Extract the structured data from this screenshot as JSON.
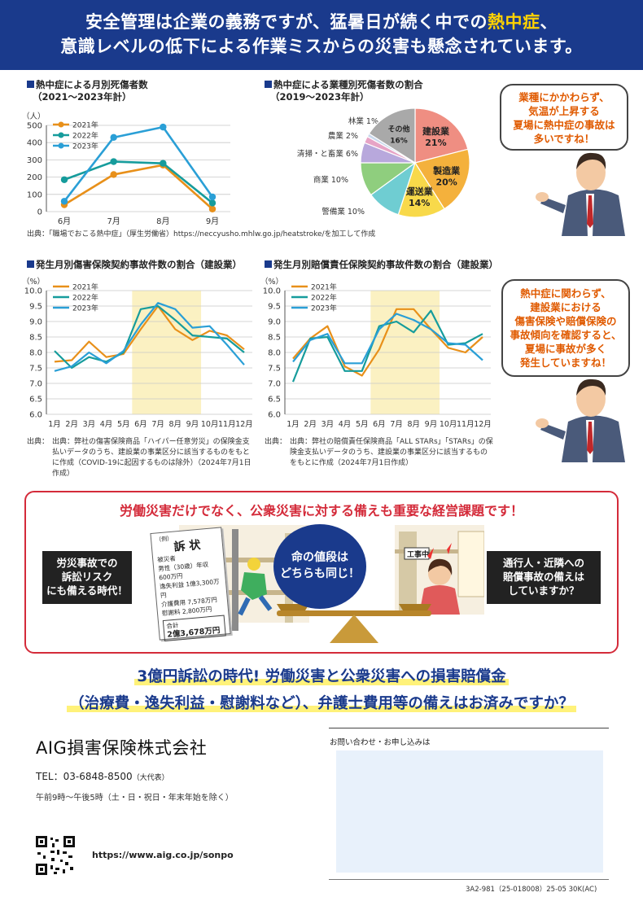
{
  "header": {
    "line1_a": "安全管理は企業の義務ですが、猛暑日が続く中での",
    "line1_hl": "熱中症",
    "line1_b": "、",
    "line2": "意識レベルの低下による作業ミスからの災害も懸念されています。"
  },
  "chart1": {
    "title": "熱中症による月別死傷者数",
    "subtitle": "（2021～2023年計）",
    "unit": "（人）",
    "note": "出典：「職場でおこる熱中症」（厚生労働省）https://neccyusho.mhlw.go.jp/heatstroke/を加工して作成"
  },
  "chart2": {
    "title": "熱中症による業種別死傷者数の割合",
    "subtitle": "（2019～2023年計）"
  },
  "chart3": {
    "title": "発生月別傷害保険契約事故件数の割合（建設業）",
    "unit": "（%）",
    "note": "出典：弊社の傷害保険商品「ハイパー任意労災」の保険金支払いデータのうち、建設業の事業区分に該当するものをもとに作成（COVID-19に起因するものは除外）（2024年7月1日作成）"
  },
  "chart4": {
    "title": "発生月別賠償責任保険契約事故件数の割合（建設業）",
    "unit": "（%）",
    "note": "出典：弊社の賠償責任保険商品「ALL STARs」「STARs」の保険金支払いデータのうち、建設業の事業区分に該当するものをもとに作成（2024年7月1日作成）"
  },
  "bubble1": {
    "l1": "業種にかかわらず、",
    "l2": "気温が上昇する",
    "l3": "夏場に熱中症の事故は",
    "l4": "多いですね！"
  },
  "bubble2": {
    "l1": "熱中症に関わらず、",
    "l2": "建設業における",
    "l3": "傷害保険や賠償保険の",
    "l4": "事故傾向を確認すると、",
    "l5": "夏場に事故が多く",
    "l6": "発生していますね！"
  },
  "middle": {
    "title": "労働災害だけでなく、公衆災害に対する備えも重要な経営課題です！",
    "left_l1": "労災事故での",
    "left_l2": "訴訟リスク",
    "left_l3": "にも備える時代！",
    "center_l1": "命の値段は",
    "center_l2": "どちらも同じ！",
    "right_l1": "通行人・近隣への",
    "right_l2": "賠償事故の備えは",
    "right_l3": "していますか？",
    "doc_example": "（例）",
    "doc_title": "訴 状",
    "doc_r1": "被災者",
    "doc_r2": "男性（30歳）年収600万円",
    "doc_r3": "逸失利益",
    "doc_r3v": "1億3,300万円",
    "doc_r4": "介護費用",
    "doc_r4v": "7,578万円",
    "doc_r5": "慰謝料",
    "doc_r5v": "2,800万円",
    "doc_total_label": "合計",
    "doc_total": "2億3,678万円"
  },
  "bottom": {
    "line1": "3億円訴訟の時代! 労働災害と公衆災害への損害賠償金",
    "line2": "（治療費・逸失利益・慰謝料など）、弁護士費用等の備えはお済みですか？"
  },
  "company": {
    "name": "AIG損害保険株式会社",
    "tel_label": "TEL：",
    "tel": "03-6848-8500",
    "tel_note": "（大代表）",
    "hours": "午前9時～午後5時（土・日・祝日・年末年始を除く）",
    "url": "https://www.aig.co.jp/sonpo"
  },
  "contact": {
    "label": "お問い合わせ・お申し込みは"
  },
  "code": "3A2-981（25-018008）25-05 30K(AC)",
  "colors": {
    "navy": "#1a3a8c",
    "orange": "#e8901a",
    "teal": "#169c9c",
    "blue": "#2a9fd6",
    "red": "#d42b3a",
    "summer": "#fbf1c2"
  },
  "chart_data": [
    {
      "type": "line",
      "title": "熱中症による月別死傷者数（2021～2023年計）",
      "ylabel": "（人）",
      "categories": [
        "6月",
        "7月",
        "8月",
        "9月"
      ],
      "ylim": [
        0,
        500
      ],
      "yticks": [
        0,
        100,
        200,
        300,
        400,
        500
      ],
      "legend": "top-left",
      "series": [
        {
          "name": "2021年",
          "color": "#e8901a",
          "values": [
            40,
            215,
            270,
            15
          ]
        },
        {
          "name": "2022年",
          "color": "#169c9c",
          "values": [
            185,
            290,
            280,
            50
          ]
        },
        {
          "name": "2023年",
          "color": "#2a9fd6",
          "values": [
            60,
            430,
            490,
            85
          ]
        }
      ]
    },
    {
      "type": "pie",
      "title": "熱中症による業種別死傷者数の割合（2019～2023年計）",
      "slices": [
        {
          "label": "建設業",
          "value": 21,
          "color": "#ef8e82"
        },
        {
          "label": "製造業",
          "value": 20,
          "color": "#f4b13c"
        },
        {
          "label": "運送業",
          "value": 14,
          "color": "#f8d94a"
        },
        {
          "label": "警備業",
          "value": 10,
          "color": "#6fcdd2"
        },
        {
          "label": "商業",
          "value": 10,
          "color": "#8fce7e"
        },
        {
          "label": "清掃・と畜業",
          "value": 6,
          "color": "#b8a8dc"
        },
        {
          "label": "農業",
          "value": 2,
          "color": "#e7a4c6"
        },
        {
          "label": "林業",
          "value": 1,
          "color": "#c9d8ec"
        },
        {
          "label": "その他",
          "value": 16,
          "color": "#a9a9a9"
        }
      ]
    },
    {
      "type": "line",
      "title": "発生月別傷害保険契約事故件数の割合（建設業）",
      "ylabel": "（%）",
      "categories": [
        "1月",
        "2月",
        "3月",
        "4月",
        "5月",
        "6月",
        "7月",
        "8月",
        "9月",
        "10月",
        "11月",
        "12月"
      ],
      "ylim": [
        6.0,
        10.0
      ],
      "yticks": [
        6.0,
        6.5,
        7.0,
        7.5,
        8.0,
        8.5,
        9.0,
        9.5,
        10.0
      ],
      "highlight": [
        "6月",
        "9月"
      ],
      "legend": "top-left",
      "series": [
        {
          "name": "2021年",
          "color": "#e8901a",
          "values": [
            7.7,
            7.75,
            8.35,
            7.85,
            7.95,
            8.75,
            9.5,
            8.75,
            8.4,
            8.7,
            8.55,
            8.1
          ]
        },
        {
          "name": "2022年",
          "color": "#169c9c",
          "values": [
            8.05,
            7.5,
            7.85,
            7.7,
            8.0,
            9.4,
            9.5,
            9.05,
            8.55,
            8.5,
            8.45,
            8.0
          ]
        },
        {
          "name": "2023年",
          "color": "#2a9fd6",
          "values": [
            7.4,
            7.55,
            8.0,
            7.65,
            8.05,
            8.9,
            9.6,
            9.4,
            8.8,
            8.85,
            8.25,
            7.6
          ]
        }
      ]
    },
    {
      "type": "line",
      "title": "発生月別賠償責任保険契約事故件数の割合（建設業）",
      "ylabel": "（%）",
      "categories": [
        "1月",
        "2月",
        "3月",
        "4月",
        "5月",
        "6月",
        "7月",
        "8月",
        "9月",
        "10月",
        "11月",
        "12月"
      ],
      "ylim": [
        6.0,
        10.0
      ],
      "yticks": [
        6.0,
        6.5,
        7.0,
        7.5,
        8.0,
        8.5,
        9.0,
        9.5,
        10.0
      ],
      "highlight": [
        "6月",
        "9月"
      ],
      "legend": "top-left",
      "series": [
        {
          "name": "2021年",
          "color": "#e8901a",
          "values": [
            7.8,
            8.45,
            8.85,
            7.55,
            7.25,
            8.1,
            9.4,
            9.4,
            8.75,
            8.15,
            8.0,
            8.5
          ]
        },
        {
          "name": "2022年",
          "color": "#169c9c",
          "values": [
            7.05,
            8.45,
            8.5,
            7.4,
            7.4,
            8.85,
            9.0,
            8.65,
            9.35,
            8.25,
            8.3,
            8.6
          ]
        },
        {
          "name": "2023年",
          "color": "#2a9fd6",
          "values": [
            7.7,
            8.4,
            8.6,
            7.65,
            7.65,
            8.75,
            9.25,
            9.05,
            8.75,
            8.3,
            8.25,
            7.75
          ]
        }
      ]
    }
  ]
}
